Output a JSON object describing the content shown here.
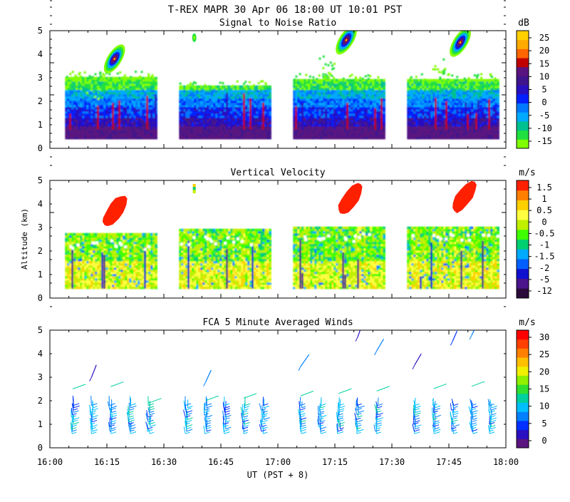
{
  "header": {
    "title": "T-REX  MAPR 30 Apr 06  18:00 UT  10:01  PST"
  },
  "x_axis": {
    "label": "UT  (PST + 8)",
    "ticks": [
      "16:00",
      "16:15",
      "16:30",
      "16:45",
      "17:00",
      "17:15",
      "17:30",
      "17:45",
      "18:00"
    ]
  },
  "y_axis": {
    "label": "Altitude (km)",
    "ticks": [
      "0",
      "1",
      "2",
      "3",
      "4",
      "5"
    ]
  },
  "colors": {
    "snr": [
      "#80ff00",
      "#20e040",
      "#00c090",
      "#00aaff",
      "#0078ff",
      "#0020ff",
      "#2810c0",
      "#40148c",
      "#5a1480",
      "#c00000",
      "#ff6600",
      "#ffaa00",
      "#ffd000"
    ],
    "vv": [
      "#2a0a3a",
      "#4a148c",
      "#1010d0",
      "#0060ff",
      "#00aaff",
      "#00d070",
      "#40ff00",
      "#c0f000",
      "#ffff40",
      "#ffd000",
      "#ff8000",
      "#ff2000"
    ],
    "winds": [
      "#5a1480",
      "#2a10c0",
      "#0030ff",
      "#0080ff",
      "#00bfff",
      "#00d0a0",
      "#30e030",
      "#90f000",
      "#f0f000",
      "#ffc000",
      "#ff8000",
      "#ff4000",
      "#ff0000"
    ]
  },
  "chart_data": [
    {
      "type": "heatmap",
      "name": "snr",
      "title": "Signal to Noise Ratio",
      "units": "dB",
      "xlabel": "UT  (PST + 8)",
      "ylabel": "Altitude (km)",
      "xlim": [
        "16:00",
        "18:00"
      ],
      "ylim": [
        0,
        5
      ],
      "colorbar_ticks": [
        "25",
        "20",
        "15",
        "10",
        "5",
        "0",
        "-5",
        "-10",
        "-15"
      ],
      "data_blocks": [
        {
          "start": "16:04",
          "end": "16:28",
          "top_km": 3.0
        },
        {
          "start": "16:34",
          "end": "16:58",
          "top_km": 2.6
        },
        {
          "start": "17:04",
          "end": "17:28",
          "top_km": 2.9
        },
        {
          "start": "17:34",
          "end": "17:58",
          "top_km": 2.9
        }
      ],
      "features": [
        {
          "label": "elevated layer",
          "time": "16:17",
          "alt_km": 3.8,
          "peak_db": 20
        },
        {
          "label": "elevated layer",
          "time": "17:18",
          "alt_km": 4.6,
          "peak_db": 20
        },
        {
          "label": "elevated layer",
          "time": "17:48",
          "alt_km": 4.5,
          "peak_db": 20
        }
      ]
    },
    {
      "type": "heatmap",
      "name": "vertical_velocity",
      "title": "Vertical Velocity",
      "units": "m/s",
      "xlabel": "UT  (PST + 8)",
      "ylabel": "Altitude (km)",
      "xlim": [
        "16:00",
        "18:00"
      ],
      "ylim": [
        0,
        5
      ],
      "colorbar_ticks": [
        "1.5",
        "1",
        "0.5",
        "0",
        "-0.5",
        "-1",
        "-1.5",
        "-2",
        "-5",
        "-12"
      ],
      "data_blocks": [
        {
          "start": "16:04",
          "end": "16:28",
          "top_km": 2.7
        },
        {
          "start": "16:34",
          "end": "16:58",
          "top_km": 2.9
        },
        {
          "start": "17:04",
          "end": "17:28",
          "top_km": 3.0
        },
        {
          "start": "17:34",
          "end": "17:58",
          "top_km": 3.0
        }
      ],
      "features": [
        {
          "label": "updraft",
          "time": "16:17",
          "alt_km": 3.7,
          "value_ms": 1.5
        },
        {
          "label": "updraft",
          "time": "17:19",
          "alt_km": 4.2,
          "value_ms": 1.5
        },
        {
          "label": "updraft",
          "time": "17:49",
          "alt_km": 4.3,
          "value_ms": 1.5
        }
      ]
    },
    {
      "type": "scatter",
      "name": "winds",
      "title": "FCA 5 Minute Averaged Winds",
      "units": "m/s",
      "xlabel": "UT  (PST + 8)",
      "ylabel": "Altitude (km)",
      "xlim": [
        "16:00",
        "18:00"
      ],
      "ylim": [
        0,
        5
      ],
      "colorbar_ticks": [
        "30",
        "25",
        "20",
        "15",
        "10",
        "5",
        "0"
      ],
      "profile_times": [
        "16:06",
        "16:11",
        "16:16",
        "16:21",
        "16:26",
        "16:36",
        "16:41",
        "16:46",
        "16:51",
        "16:56",
        "17:06",
        "17:11",
        "17:16",
        "17:21",
        "17:26",
        "17:36",
        "17:41",
        "17:46",
        "17:51",
        "17:56"
      ],
      "speed_range_low_ms": [
        5,
        12
      ],
      "speed_range_upper_ms": [
        2,
        8
      ]
    }
  ]
}
